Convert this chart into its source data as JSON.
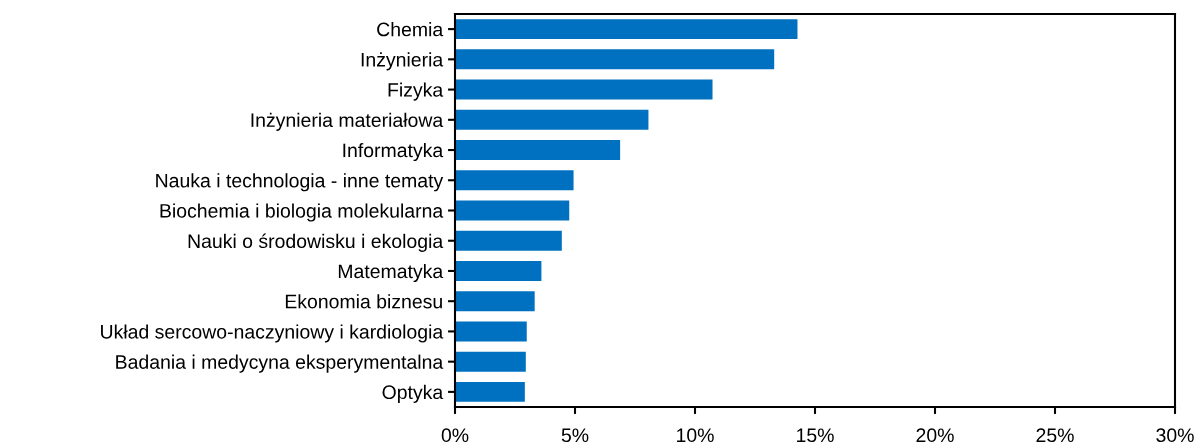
{
  "chart_data": {
    "type": "bar",
    "orientation": "horizontal",
    "categories": [
      "Chemia",
      "Inżynieria",
      "Fizyka",
      "Inżynieria materiałowa",
      "Informatyka",
      "Nauka i technologia - inne tematy",
      "Biochemia i biologia molekularna",
      "Nauki o środowisku i ekologia",
      "Matematyka",
      "Ekonomia biznesu",
      "Układ sercowo-naczyniowy i kardiologia",
      "Badania i medycyna eksperymentalna",
      "Optyka"
    ],
    "values": [
      14.27,
      13.3,
      10.73,
      8.06,
      6.88,
      4.94,
      4.76,
      4.45,
      3.6,
      3.32,
      2.99,
      2.95,
      2.91
    ],
    "color": "#0070c0",
    "xlim": [
      0,
      30
    ],
    "xticks": [
      {
        "value": 0,
        "label": "0%"
      },
      {
        "value": 5,
        "label": "5%"
      },
      {
        "value": 10,
        "label": "10%"
      },
      {
        "value": 15,
        "label": "15%"
      },
      {
        "value": 20,
        "label": "20%"
      },
      {
        "value": 25,
        "label": "25%"
      },
      {
        "value": 30,
        "label": "30%"
      }
    ],
    "grid": false,
    "legend": false
  }
}
